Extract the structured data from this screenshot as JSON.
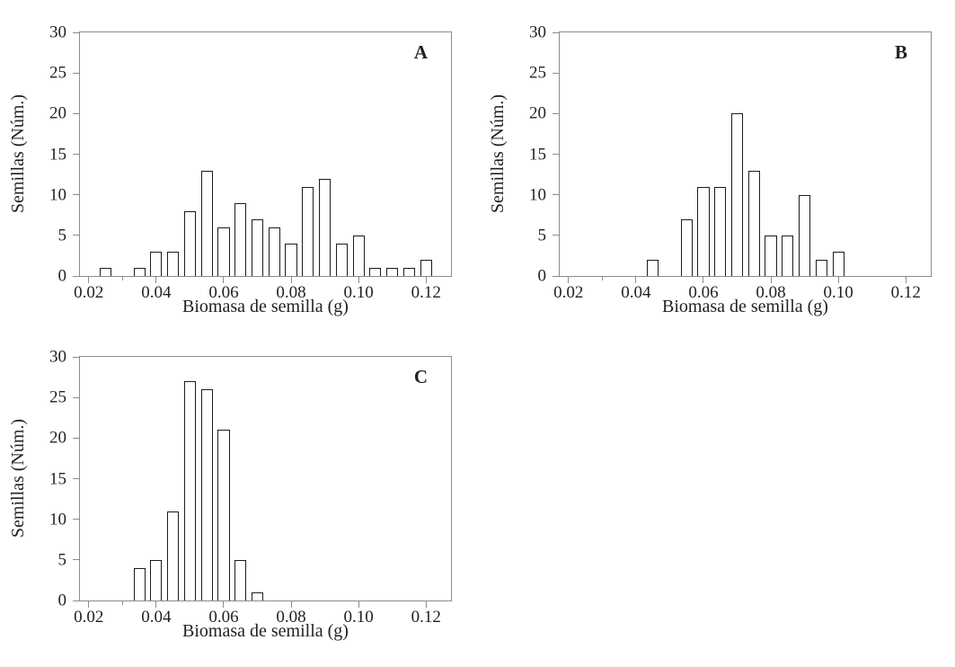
{
  "figure": {
    "colors": {
      "bg": "#ffffff",
      "axis": "#8c8c8c",
      "text": "#231f20",
      "bar-border": "#1c1c1c",
      "bar-fill": "#ffffff"
    }
  },
  "chart_data": [
    {
      "type": "bar",
      "panel_label": "A",
      "xlabel": "Biomasa de semilla (g)",
      "ylabel": "Semillas (Núm.)",
      "xlim": [
        0.0174,
        0.1274
      ],
      "ylim": [
        0,
        30
      ],
      "grid": false,
      "bin_width": 0.005,
      "bar_width": 0.0035,
      "xtick_values": [
        0.02,
        0.04,
        0.06,
        0.08,
        0.1,
        0.12
      ],
      "xtick_labels": [
        "0.02",
        "0.04",
        "0.06",
        "0.08",
        "0.10",
        "0.12"
      ],
      "xtick_minor": [
        0.03
      ],
      "ytick_values": [
        0,
        5,
        10,
        15,
        20,
        25,
        30
      ],
      "ytick_labels": [
        "0",
        "5",
        "10",
        "15",
        "20",
        "25",
        "30"
      ],
      "x": [
        0.025,
        0.035,
        0.04,
        0.045,
        0.05,
        0.055,
        0.06,
        0.065,
        0.07,
        0.075,
        0.08,
        0.085,
        0.09,
        0.095,
        0.1,
        0.105,
        0.11,
        0.115,
        0.12
      ],
      "values": [
        1,
        1,
        3,
        3,
        8,
        13,
        6,
        9,
        7,
        6,
        4,
        11,
        12,
        4,
        5,
        1,
        1,
        1,
        2
      ]
    },
    {
      "type": "bar",
      "panel_label": "B",
      "xlabel": "Biomasa de semilla (g)",
      "ylabel": "Semillas (Núm.)",
      "xlim": [
        0.0174,
        0.1274
      ],
      "ylim": [
        0,
        30
      ],
      "grid": false,
      "bin_width": 0.005,
      "bar_width": 0.0035,
      "xtick_values": [
        0.02,
        0.04,
        0.06,
        0.08,
        0.1,
        0.12
      ],
      "xtick_labels": [
        "0.02",
        "0.04",
        "0.06",
        "0.08",
        "0.10",
        "0.12"
      ],
      "xtick_minor": [
        0.03
      ],
      "ytick_values": [
        0,
        5,
        10,
        15,
        20,
        25,
        30
      ],
      "ytick_labels": [
        "0",
        "5",
        "10",
        "15",
        "20",
        "25",
        "30"
      ],
      "x": [
        0.045,
        0.055,
        0.06,
        0.065,
        0.07,
        0.075,
        0.08,
        0.085,
        0.09,
        0.095,
        0.1
      ],
      "values": [
        2,
        7,
        11,
        11,
        20,
        13,
        5,
        5,
        10,
        2,
        3
      ]
    },
    {
      "type": "bar",
      "panel_label": "C",
      "xlabel": "Biomasa de semilla (g)",
      "ylabel": "Semillas (Núm.)",
      "xlim": [
        0.0174,
        0.1274
      ],
      "ylim": [
        0,
        30
      ],
      "grid": false,
      "bin_width": 0.005,
      "bar_width": 0.0035,
      "xtick_values": [
        0.02,
        0.04,
        0.06,
        0.08,
        0.1,
        0.12
      ],
      "xtick_labels": [
        "0.02",
        "0.04",
        "0.06",
        "0.08",
        "0.10",
        "0.12"
      ],
      "xtick_minor": [
        0.03
      ],
      "ytick_values": [
        0,
        5,
        10,
        15,
        20,
        25,
        30
      ],
      "ytick_labels": [
        "0",
        "5",
        "10",
        "15",
        "20",
        "25",
        "30"
      ],
      "x": [
        0.035,
        0.04,
        0.045,
        0.05,
        0.055,
        0.06,
        0.065,
        0.07
      ],
      "values": [
        4,
        5,
        11,
        27,
        26,
        21,
        5,
        1
      ]
    }
  ]
}
